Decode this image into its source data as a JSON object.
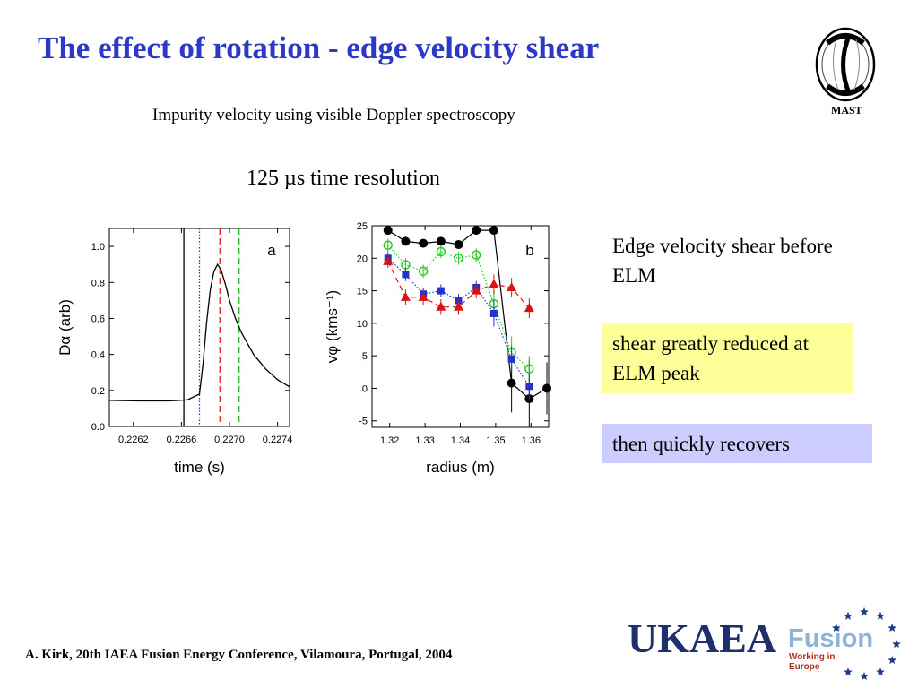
{
  "slide": {
    "title": "The effect of rotation - edge velocity shear",
    "subtitle": "Impurity velocity using visible Doppler spectroscopy",
    "resolution": "125 µs time resolution",
    "notes": {
      "plain": "Edge velocity shear before ELM",
      "yellow": "shear greatly reduced at ELM peak",
      "lavender": "then quickly recovers"
    },
    "footer": "A. Kirk, 20th IAEA Fusion Energy Conference, Vilamoura, Portugal, 2004",
    "logos": {
      "mast_label": "MAST",
      "ukaea": "UKAEA",
      "fusion": "Fusion",
      "working": "Working in Europe"
    },
    "colors": {
      "title": "#2b38c8",
      "highlight_yellow": "#ffff99",
      "highlight_lavender": "#ccccff"
    }
  },
  "chart_data": [
    {
      "type": "line",
      "panel_label": "a",
      "xlabel": "time (s)",
      "ylabel": "Dα (arb)",
      "xlim": [
        0.226,
        0.2275
      ],
      "ylim": [
        0.0,
        1.1
      ],
      "xticks": [
        0.2262,
        0.2266,
        0.227,
        0.2274
      ],
      "xtick_labels": [
        "0.2262",
        "0.2266",
        "0.2270",
        "0.2274"
      ],
      "yticks": [
        0.0,
        0.2,
        0.4,
        0.6,
        0.8,
        1.0
      ],
      "ytick_labels": [
        "0.0",
        "0.2",
        "0.4",
        "0.6",
        "0.8",
        "1.0"
      ],
      "series": [
        {
          "color": "#000000",
          "x": [
            0.226,
            0.22625,
            0.2265,
            0.22665,
            0.22675,
            0.22678,
            0.22681,
            0.22684,
            0.22687,
            0.2269,
            0.22693,
            0.22697,
            0.227,
            0.22705,
            0.2271,
            0.2272,
            0.2273,
            0.2274,
            0.2275
          ],
          "y": [
            0.145,
            0.142,
            0.142,
            0.148,
            0.18,
            0.35,
            0.58,
            0.76,
            0.86,
            0.9,
            0.87,
            0.78,
            0.7,
            0.6,
            0.52,
            0.4,
            0.32,
            0.26,
            0.22
          ]
        }
      ],
      "vlines": [
        {
          "x": 0.22662,
          "color": "#000000",
          "style": "solid"
        },
        {
          "x": 0.22675,
          "color": "#2233cc",
          "style": "dotted"
        },
        {
          "x": 0.22692,
          "color": "#dd2222",
          "style": "dashed"
        },
        {
          "x": 0.22708,
          "color": "#22bb22",
          "style": "dashed"
        }
      ]
    },
    {
      "type": "scatter",
      "panel_label": "b",
      "xlabel": "radius (m)",
      "ylabel": "vφ (kms⁻¹)",
      "xlim": [
        1.315,
        1.365
      ],
      "ylim": [
        -6,
        25
      ],
      "xticks": [
        1.32,
        1.33,
        1.34,
        1.35,
        1.36
      ],
      "xtick_labels": [
        "1.32",
        "1.33",
        "1.34",
        "1.35",
        "1.36"
      ],
      "yticks": [
        -5,
        0,
        5,
        10,
        15,
        20,
        25
      ],
      "ytick_labels": [
        "-5",
        "0",
        "5",
        "10",
        "15",
        "20",
        "25"
      ],
      "series": [
        {
          "color": "#000000",
          "marker": "filled-circle",
          "line": "solid",
          "x": [
            1.3195,
            1.3245,
            1.3295,
            1.3345,
            1.3395,
            1.3445,
            1.3495,
            1.3545,
            1.3595,
            1.3645
          ],
          "y": [
            24.3,
            22.6,
            22.3,
            22.6,
            22.1,
            24.3,
            24.3,
            0.8,
            -1.6,
            0.0
          ],
          "err": [
            0,
            0,
            0,
            0,
            0,
            0,
            0,
            4.5,
            6.0,
            4.0
          ]
        },
        {
          "color": "#22cc22",
          "marker": "open-circle",
          "line": "dotted",
          "x": [
            1.3195,
            1.3245,
            1.3295,
            1.3345,
            1.3395,
            1.3445,
            1.3495,
            1.3545,
            1.3595
          ],
          "y": [
            22.0,
            19.0,
            18.0,
            21.0,
            20.0,
            20.5,
            13.0,
            5.5,
            3.0
          ],
          "err": [
            1,
            1,
            1,
            1,
            1,
            1,
            2,
            2.5,
            2
          ]
        },
        {
          "color": "#2233cc",
          "marker": "filled-square",
          "line": "dotted",
          "x": [
            1.3195,
            1.3245,
            1.3295,
            1.3345,
            1.3395,
            1.3445,
            1.3495,
            1.3545,
            1.3595
          ],
          "y": [
            20.0,
            17.5,
            14.5,
            15.0,
            13.5,
            15.5,
            11.5,
            4.5,
            0.3
          ],
          "err": [
            1,
            1,
            1,
            1,
            1,
            1,
            2,
            2,
            2
          ]
        },
        {
          "color": "#dd1111",
          "marker": "filled-triangle",
          "line": "dashed",
          "x": [
            1.3195,
            1.3245,
            1.3295,
            1.3345,
            1.3395,
            1.3445,
            1.3495,
            1.3545,
            1.3595
          ],
          "y": [
            19.5,
            14.0,
            14.0,
            12.5,
            12.5,
            15.0,
            16.0,
            15.5,
            12.3
          ],
          "err": [
            1,
            1.2,
            1.2,
            1.2,
            1.2,
            1.2,
            1.5,
            1.5,
            1.5
          ]
        }
      ]
    }
  ]
}
